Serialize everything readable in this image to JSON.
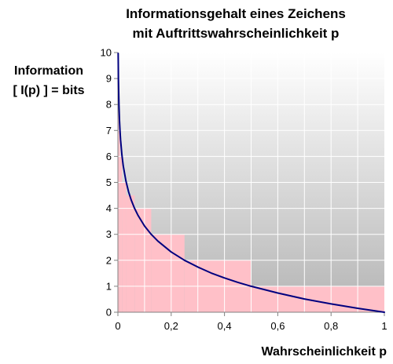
{
  "chart_data": {
    "type": "line",
    "title_lines": [
      "Informationsgehalt eines Zeichens",
      "mit Auftrittswahrscheinlichkeit p"
    ],
    "ylabel_lines": [
      "Information",
      "[ I(p) ] = bits"
    ],
    "xlabel": "Wahrscheinlichkeit p",
    "xlim": [
      0,
      1
    ],
    "ylim": [
      0,
      10
    ],
    "x_ticks": [
      {
        "value": 0,
        "label": "0"
      },
      {
        "value": 0.2,
        "label": "0,2"
      },
      {
        "value": 0.4,
        "label": "0,4"
      },
      {
        "value": 0.6,
        "label": "0,6"
      },
      {
        "value": 0.8,
        "label": "0,8"
      },
      {
        "value": 1,
        "label": "1"
      }
    ],
    "y_ticks": [
      {
        "value": 0,
        "label": "0"
      },
      {
        "value": 1,
        "label": "1"
      },
      {
        "value": 2,
        "label": "2"
      },
      {
        "value": 3,
        "label": "3"
      },
      {
        "value": 4,
        "label": "4"
      },
      {
        "value": 5,
        "label": "5"
      },
      {
        "value": 6,
        "label": "6"
      },
      {
        "value": 7,
        "label": "7"
      },
      {
        "value": 8,
        "label": "8"
      },
      {
        "value": 9,
        "label": "9"
      },
      {
        "value": 10,
        "label": "10"
      }
    ],
    "grid": true,
    "x_grid_step": 0.1,
    "y_grid_step": 1,
    "series": [
      {
        "x": [
          0.001,
          0.002,
          0.004,
          0.006,
          0.008,
          0.01,
          0.015,
          0.02,
          0.03,
          0.04,
          0.05,
          0.0625,
          0.075,
          0.1,
          0.125,
          0.15,
          0.2,
          0.25,
          0.3,
          0.35,
          0.4,
          0.45,
          0.5,
          0.6,
          0.7,
          0.8,
          0.9,
          1.0
        ],
        "y": [
          9.97,
          8.97,
          7.97,
          7.38,
          6.97,
          6.64,
          6.06,
          5.64,
          5.06,
          4.64,
          4.32,
          4.0,
          3.74,
          3.32,
          3.0,
          2.74,
          2.32,
          2.0,
          1.74,
          1.51,
          1.32,
          1.15,
          1.0,
          0.74,
          0.51,
          0.32,
          0.15,
          0.0
        ],
        "color": "#00007f"
      }
    ],
    "steps": [
      {
        "p_from": 0,
        "p_to": 0.00390625,
        "bits": 8
      },
      {
        "p_from": 0.00390625,
        "p_to": 0.0078125,
        "bits": 7
      },
      {
        "p_from": 0.0078125,
        "p_to": 0.015625,
        "bits": 6
      },
      {
        "p_from": 0.015625,
        "p_to": 0.03125,
        "bits": 5
      },
      {
        "p_from": 0.03125,
        "p_to": 0.0625,
        "bits": 4.5
      },
      {
        "p_from": 0.0625,
        "p_to": 0.125,
        "bits": 4
      },
      {
        "p_from": 0.125,
        "p_to": 0.25,
        "bits": 3
      },
      {
        "p_from": 0.25,
        "p_to": 0.5,
        "bits": 2
      },
      {
        "p_from": 0.5,
        "p_to": 1.0,
        "bits": 1
      }
    ],
    "colors": {
      "line": "#00007f",
      "steps": "#ffc0c8",
      "grid": "#ffffff",
      "axis": "#808080",
      "gradient_top": "#ffffff",
      "gradient_bottom": "#b4b4b4"
    }
  }
}
